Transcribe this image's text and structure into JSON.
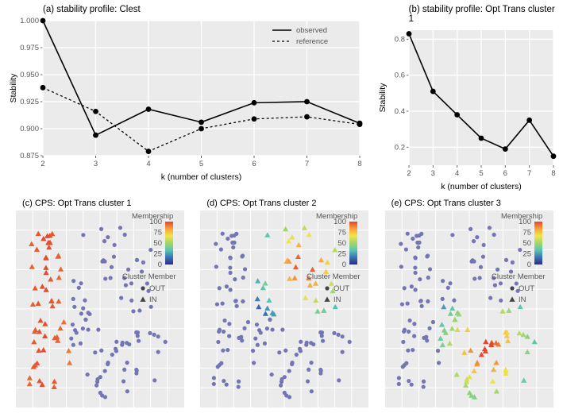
{
  "colors": {
    "panel_bg": "#ebebeb",
    "grid": "#ffffff",
    "line": "#000000",
    "point": "#000000",
    "scatter_out": "#7375b5",
    "membership_stops": [
      "#2c2d80",
      "#3c72b6",
      "#59c5b5",
      "#a1d66a",
      "#f2e44b",
      "#f6a23a",
      "#e4452b"
    ]
  },
  "panelA": {
    "title": "(a) stability profile: Clest",
    "xlabel": "k (number of clusters)",
    "ylabel": "Stability",
    "x": [
      2,
      3,
      4,
      5,
      6,
      7,
      8
    ],
    "observed": [
      1.0,
      0.894,
      0.918,
      0.906,
      0.924,
      0.925,
      0.905
    ],
    "reference": [
      0.938,
      0.916,
      0.879,
      0.9,
      0.909,
      0.911,
      0.904
    ],
    "ylim": [
      0.875,
      1.0
    ],
    "ytick_step": 0.025,
    "legend": {
      "observed": "observed",
      "reference": "reference"
    }
  },
  "panelB": {
    "title": "(b) stability profile:  Opt Trans cluster 1",
    "xlabel": "k (number of clusters)",
    "ylabel": "Stability",
    "x": [
      2,
      3,
      4,
      5,
      6,
      7,
      8
    ],
    "y": [
      0.83,
      0.51,
      0.38,
      0.25,
      0.19,
      0.35,
      0.15
    ],
    "ylim": [
      0.1,
      0.85
    ],
    "yticks": [
      0.2,
      0.4,
      0.6,
      0.8
    ]
  },
  "scatterCommon": {
    "legend_title": "Membership",
    "legend_values": [
      100,
      75,
      50,
      25,
      0
    ],
    "shape_title": "Cluster Member",
    "shape_labels": {
      "out": "OUT",
      "in": "IN"
    },
    "xlim": [
      0,
      10
    ],
    "ylim": [
      0,
      10
    ]
  },
  "panelC": {
    "title": "(c) CPS: Opt Trans cluster 1"
  },
  "panelD": {
    "title": "(d) CPS: Opt Trans cluster 2"
  },
  "panelE": {
    "title": "(e) CPS: Opt Trans cluster 3"
  }
}
